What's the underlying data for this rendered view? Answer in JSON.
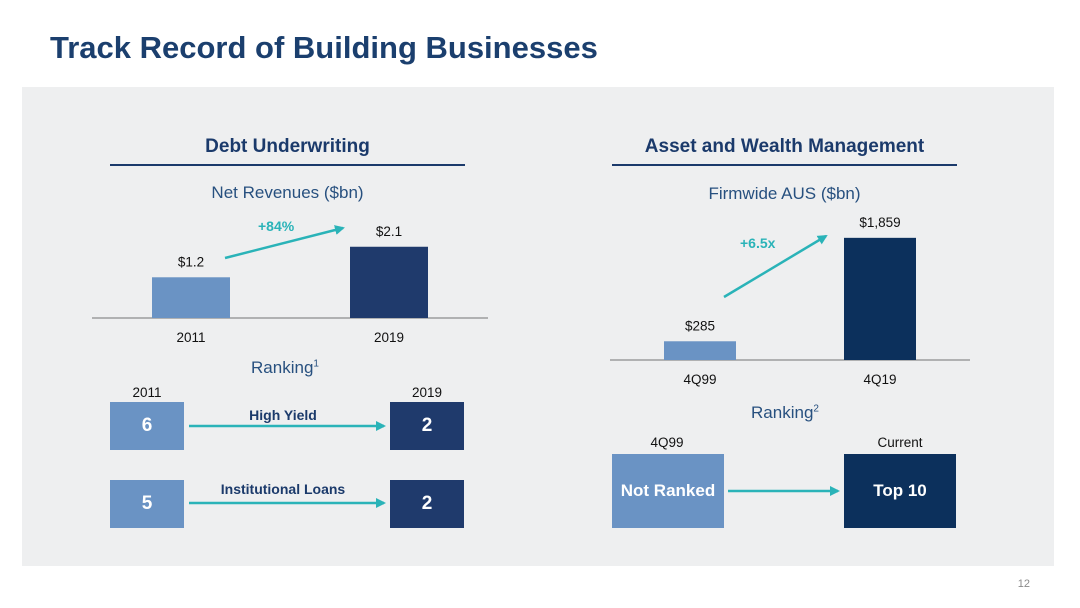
{
  "slide": {
    "title": "Track Record of Building Businesses",
    "page_number": "12"
  },
  "colors": {
    "title": "#1b3f6e",
    "panel_bg": "#eeeff0",
    "bar_light": "#6a93c4",
    "bar_dark": "#1f3a6c",
    "bar_navy": "#0c305c",
    "arrow_teal": "#2ab3b8"
  },
  "left_section": {
    "heading": "Debt Underwriting",
    "chart_subtitle": "Net Revenues ($bn)",
    "growth_label": "+84%",
    "ranking_title": "Ranking",
    "ranking_footnote": "1",
    "ranking_year_from": "2011",
    "ranking_year_to": "2019",
    "rankings": [
      {
        "category": "High Yield",
        "from": "6",
        "to": "2"
      },
      {
        "category": "Institutional Loans",
        "from": "5",
        "to": "2"
      }
    ]
  },
  "right_section": {
    "heading": "Asset and Wealth Management",
    "chart_subtitle": "Firmwide AUS ($bn)",
    "growth_label": "+6.5x",
    "ranking_title": "Ranking",
    "ranking_footnote": "2",
    "ranking_col_from": "4Q99",
    "ranking_col_to": "Current",
    "ranking_from": "Not Ranked",
    "ranking_to": "Top 10"
  },
  "chart_data": [
    {
      "type": "bar",
      "title": "Net Revenues ($bn)",
      "categories": [
        "2011",
        "2019"
      ],
      "values": [
        1.2,
        2.1
      ],
      "value_labels": [
        "$1.2",
        "$2.1"
      ],
      "ylim": [
        0,
        2.8
      ],
      "bar_colors": [
        "#6a93c4",
        "#1f3a6c"
      ],
      "annotation": "+84%",
      "grid": false,
      "legend": "none"
    },
    {
      "type": "bar",
      "title": "Firmwide AUS ($bn)",
      "categories": [
        "4Q99",
        "4Q19"
      ],
      "values": [
        285,
        1859
      ],
      "value_labels": [
        "$285",
        "$1,859"
      ],
      "ylim": [
        0,
        2100
      ],
      "bar_colors": [
        "#6a93c4",
        "#0c305c"
      ],
      "annotation": "+6.5x",
      "grid": false,
      "legend": "none"
    }
  ]
}
